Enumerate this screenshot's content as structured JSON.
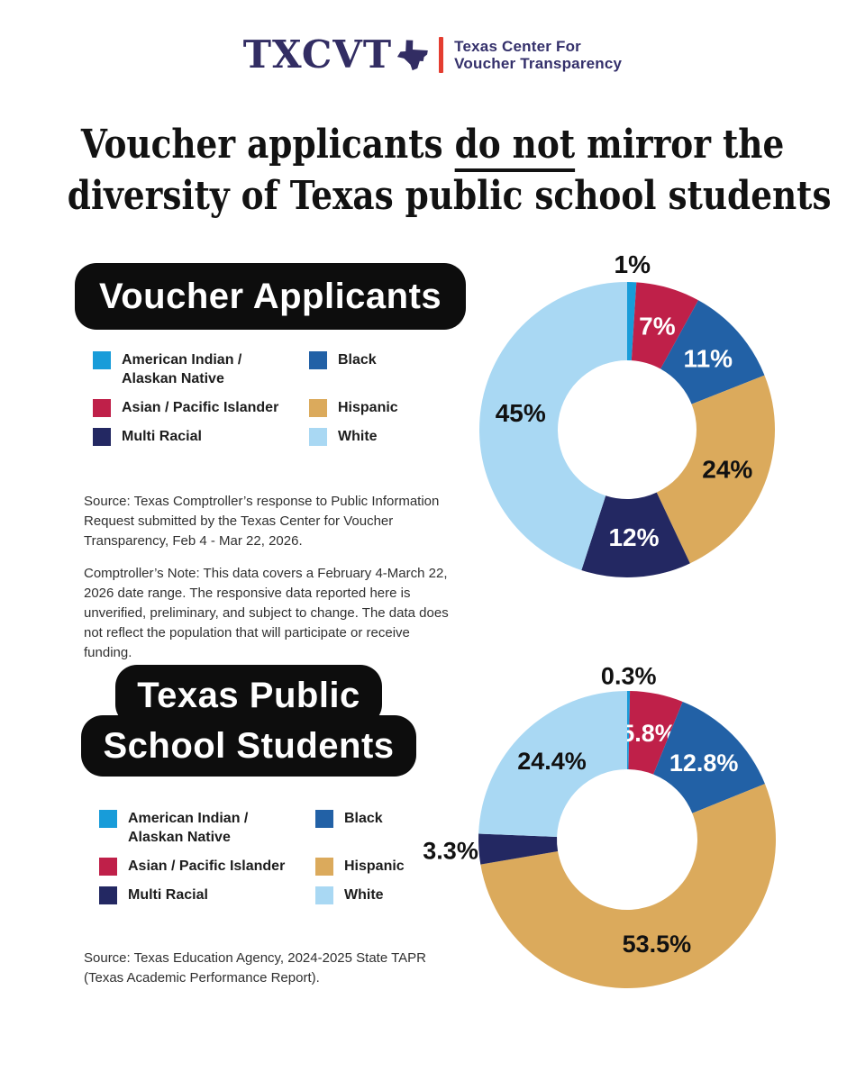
{
  "logo": {
    "acronym": "TXCVT",
    "org_line1": "Texas Center For",
    "org_line2": "Voucher Transparency",
    "navy": "#322d63",
    "red": "#e43d30"
  },
  "title": {
    "line1_pre": "Voucher applicants ",
    "line1_underline": "do not",
    "line1_post": " mirror the",
    "line2": "diversity of Texas public school students"
  },
  "legend": {
    "items": [
      {
        "text": "American Indian /\nAlaskan Native",
        "slice": 0
      },
      {
        "text": "Black",
        "slice": 2
      },
      {
        "text": "Asian / Pacific Islander",
        "slice": 1
      },
      {
        "text": "Hispanic",
        "slice": 3
      },
      {
        "text": "Multi Racial",
        "slice": 4
      },
      {
        "text": "White",
        "slice": 5
      }
    ]
  },
  "sections": [
    {
      "badge": "Voucher Applicants",
      "source": "Source: Texas Comptroller’s response to Public Information\nRequest submitted by the Texas Center for Voucher\nTransparency, Feb 4 - Mar 22, 2026.",
      "note": "Comptroller’s Note: This data covers a February 4-March 22,\n2026 date range. The responsive data reported here is\nunverified, preliminary, and subject to change. The data does\nnot reflect the population that will participate or receive\nfunding."
    },
    {
      "badge_line1": "Texas Public",
      "badge_line2": "School Students",
      "source": "Source: Texas Education Agency, 2024-2025 State TAPR\n(Texas Academic Performance Report)."
    }
  ],
  "chart_data": [
    {
      "type": "pie",
      "subtype": "donut",
      "title": "Voucher Applicants",
      "legend_position": "left",
      "start_angle_deg": 0,
      "direction": "clockwise",
      "slices": [
        {
          "label": "American Indian / Alaskan Native",
          "value": 1,
          "display": "1%",
          "color": "#189cd9",
          "label_inside": false,
          "label_color": "#111111"
        },
        {
          "label": "Asian / Pacific Islander",
          "value": 7,
          "display": "7%",
          "color": "#bf2049",
          "label_inside": true,
          "label_color": "#ffffff"
        },
        {
          "label": "Black",
          "value": 11,
          "display": "11%",
          "color": "#2261a6",
          "label_inside": true,
          "label_color": "#ffffff"
        },
        {
          "label": "Hispanic",
          "value": 24,
          "display": "24%",
          "color": "#dbaa5c",
          "label_inside": true,
          "label_color": "#111111"
        },
        {
          "label": "Multi Racial",
          "value": 12,
          "display": "12%",
          "color": "#232862",
          "label_inside": true,
          "label_color": "#ffffff"
        },
        {
          "label": "White",
          "value": 45,
          "display": "45%",
          "color": "#a9d8f3",
          "label_inside": true,
          "label_color": "#111111"
        }
      ]
    },
    {
      "type": "pie",
      "subtype": "donut",
      "title": "Texas Public School Students",
      "legend_position": "left",
      "start_angle_deg": 0,
      "direction": "clockwise",
      "slices": [
        {
          "label": "American Indian / Alaskan Native",
          "value": 0.3,
          "display": "0.3%",
          "color": "#189cd9",
          "label_inside": false,
          "label_color": "#111111",
          "label_r": 1.1
        },
        {
          "label": "Asian / Pacific Islander",
          "value": 5.8,
          "display": "5.8%",
          "color": "#bf2049",
          "label_inside": true,
          "label_color": "#ffffff"
        },
        {
          "label": "Black",
          "value": 12.8,
          "display": "12.8%",
          "color": "#2261a6",
          "label_inside": true,
          "label_color": "#ffffff"
        },
        {
          "label": "Hispanic",
          "value": 53.5,
          "display": "53.5%",
          "color": "#dbaa5c",
          "label_inside": true,
          "label_color": "#111111"
        },
        {
          "label": "Multi Racial",
          "value": 3.3,
          "display": "3.3%",
          "color": "#232862",
          "label_inside": false,
          "label_color": "#111111",
          "label_r": 1.19
        },
        {
          "label": "White",
          "value": 24.4,
          "display": "24.4%",
          "color": "#a9d8f3",
          "label_inside": true,
          "label_color": "#111111"
        }
      ]
    }
  ]
}
